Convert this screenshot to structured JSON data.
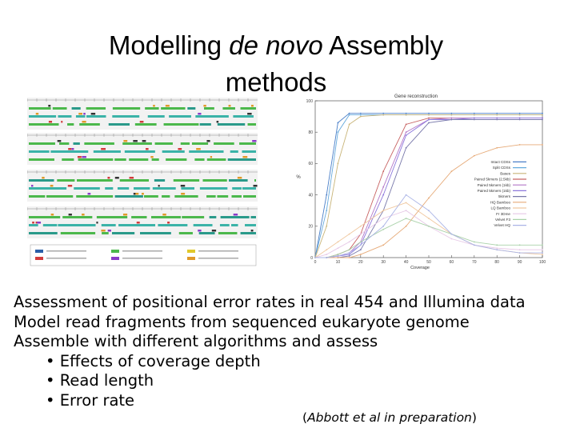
{
  "slide": {
    "title_part1": "Modelling ",
    "title_italic": "de novo",
    "title_part2": " Assembly",
    "title_line2": "methods",
    "lines": [
      "Assessment of positional error rates in real 454 and Illumina data",
      "Model read fragments from sequenced eukaryote genome",
      "Assemble with different algorithms and assess"
    ],
    "bullets": [
      "Effects of coverage depth",
      "Read length",
      "Error rate"
    ],
    "bullet_char": "•",
    "citation": "Abbott et al in preparation"
  },
  "chart_data": {
    "type": "line",
    "title": "Gene reconstruction",
    "xlabel": "Coverage",
    "ylabel": "%",
    "xlim": [
      0,
      100
    ],
    "ylim": [
      0,
      100
    ],
    "x_ticks": [
      "0",
      "10",
      "20",
      "30",
      "40",
      "50",
      "60",
      "70",
      "80",
      "90",
      "100"
    ],
    "y_ticks": [
      "0",
      "20",
      "40",
      "60",
      "80",
      "100"
    ],
    "legend_position": "right",
    "x": [
      0,
      5,
      10,
      15,
      20,
      30,
      40,
      50,
      60,
      70,
      80,
      90,
      100
    ],
    "series": [
      {
        "name": "Intact CDSs",
        "color": "#4a7fc8",
        "values": [
          0,
          40,
          86,
          92,
          92,
          92,
          92,
          92,
          92,
          92,
          92,
          92,
          92
        ]
      },
      {
        "name": "Split CDSs",
        "color": "#66aadd",
        "values": [
          0,
          30,
          80,
          91,
          91,
          91,
          91,
          91,
          91,
          91,
          91,
          91,
          91
        ]
      },
      {
        "name": "Bases",
        "color": "#c8b478",
        "values": [
          0,
          20,
          60,
          85,
          90,
          91,
          91,
          91,
          91,
          91,
          91,
          91,
          91
        ]
      },
      {
        "name": "Paired 5kmers (2.5kb)",
        "color": "#c86464",
        "values": [
          0,
          0,
          2,
          5,
          15,
          55,
          85,
          89,
          89,
          89,
          89,
          89,
          89
        ]
      },
      {
        "name": "Paired 5kmers (1kb)",
        "color": "#b478c8",
        "values": [
          0,
          0,
          1,
          3,
          10,
          45,
          80,
          88,
          89,
          89,
          89,
          89,
          89
        ]
      },
      {
        "name": "Paired 5kmers (1kb)",
        "color": "#8c78dc",
        "values": [
          0,
          0,
          1,
          2,
          8,
          40,
          78,
          88,
          88,
          89,
          89,
          89,
          89
        ]
      },
      {
        "name": "5kmers",
        "color": "#7878aa",
        "values": [
          0,
          0,
          0,
          1,
          5,
          30,
          70,
          86,
          88,
          88,
          88,
          88,
          88
        ]
      },
      {
        "name": "HQ Bamboo",
        "color": "#e6aa78",
        "values": [
          0,
          0,
          0,
          0,
          2,
          8,
          20,
          38,
          55,
          65,
          70,
          72,
          72
        ]
      },
      {
        "name": "LQ Bamboo",
        "color": "#f0c8a0",
        "values": [
          0,
          5,
          10,
          15,
          20,
          30,
          35,
          25,
          15,
          8,
          5,
          3,
          2
        ]
      },
      {
        "name": "Fr 3Dme",
        "color": "#e6c8e6",
        "values": [
          0,
          2,
          6,
          10,
          15,
          25,
          30,
          20,
          12,
          8,
          6,
          5,
          5
        ]
      },
      {
        "name": "Velvet F3",
        "color": "#aad2aa",
        "values": [
          0,
          0,
          2,
          5,
          10,
          18,
          25,
          20,
          15,
          10,
          8,
          8,
          8
        ]
      },
      {
        "name": "Velvet HQ",
        "color": "#aab4e6",
        "values": [
          0,
          0,
          1,
          3,
          8,
          20,
          40,
          30,
          15,
          8,
          5,
          3,
          3
        ]
      }
    ]
  }
}
